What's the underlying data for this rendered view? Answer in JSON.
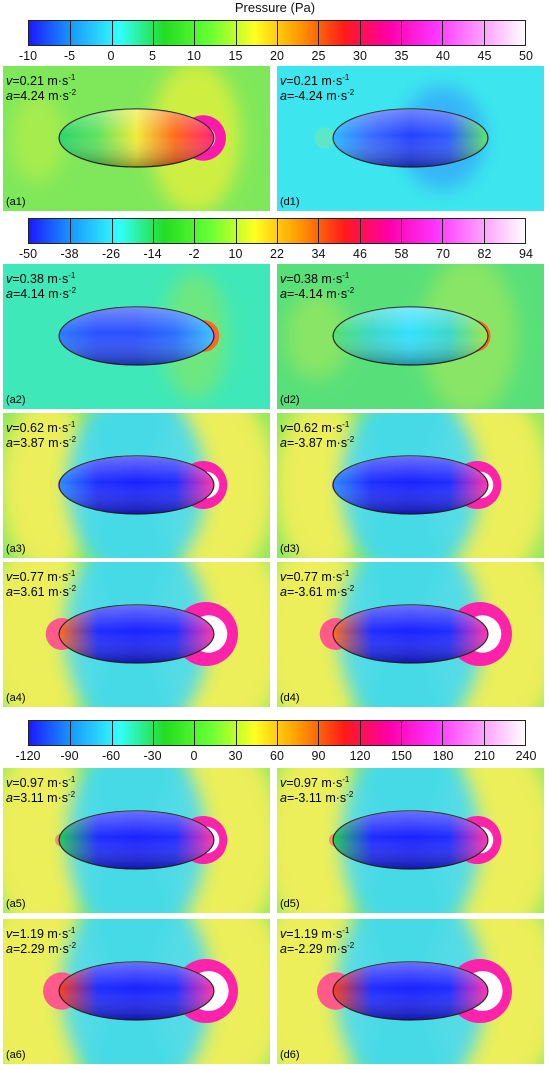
{
  "title": "Pressure (Pa)",
  "colorbars": [
    {
      "ticks": [
        "-10",
        "-5",
        "0",
        "5",
        "10",
        "15",
        "20",
        "25",
        "30",
        "35",
        "40",
        "45",
        "50"
      ]
    },
    {
      "ticks": [
        "-50",
        "-38",
        "-26",
        "-14",
        "-2",
        "10",
        "22",
        "34",
        "46",
        "58",
        "70",
        "82",
        "94"
      ]
    },
    {
      "ticks": [
        "-120",
        "-90",
        "-60",
        "-30",
        "0",
        "30",
        "60",
        "90",
        "120",
        "150",
        "180",
        "210",
        "240"
      ]
    }
  ],
  "colormap": [
    "#1a1aff",
    "#1a9fff",
    "#33ffff",
    "#22dd22",
    "#66ff33",
    "#ffff22",
    "#ff9900",
    "#ff1a1a",
    "#ff00aa",
    "#ff33ff",
    "#ff99ff",
    "#ffffff"
  ],
  "panels": [
    {
      "tag": "(a1)",
      "v": "0.21",
      "a": "4.24"
    },
    {
      "tag": "(d1)",
      "v": "0.21",
      "a": "-4.24"
    },
    {
      "tag": "(a2)",
      "v": "0.38",
      "a": "4.14"
    },
    {
      "tag": "(d2)",
      "v": "0.38",
      "a": "-4.14"
    },
    {
      "tag": "(a3)",
      "v": "0.62",
      "a": "3.87"
    },
    {
      "tag": "(d3)",
      "v": "0.62",
      "a": "-3.87"
    },
    {
      "tag": "(a4)",
      "v": "0.77",
      "a": "3.61"
    },
    {
      "tag": "(d4)",
      "v": "0.77",
      "a": "-3.61"
    },
    {
      "tag": "(a5)",
      "v": "0.97",
      "a": "3.11"
    },
    {
      "tag": "(d5)",
      "v": "0.97",
      "a": "-3.11"
    },
    {
      "tag": "(a6)",
      "v": "1.19",
      "a": "2.29"
    },
    {
      "tag": "(d6)",
      "v": "1.19",
      "a": "-2.29"
    }
  ],
  "units": {
    "v": "m·s",
    "a": "m·s",
    "v_exp": "-1",
    "a_exp": "-2"
  },
  "symbols": {
    "v": "v",
    "a": "a"
  }
}
